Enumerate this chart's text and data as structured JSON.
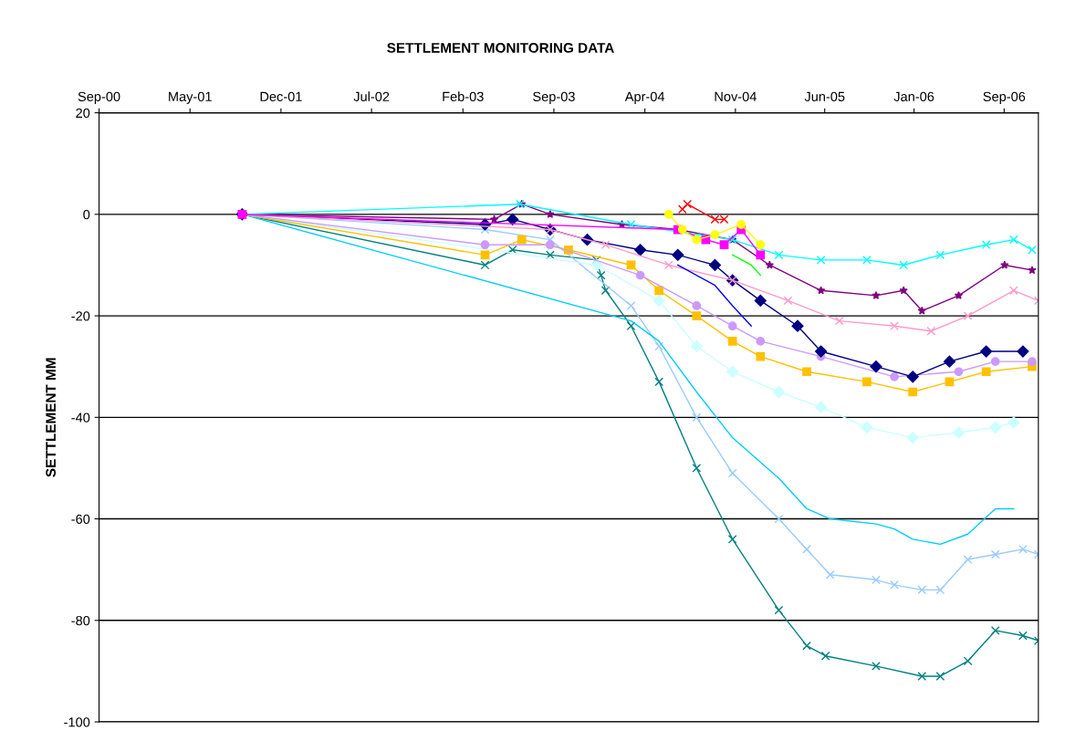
{
  "chart_data": {
    "type": "line",
    "title": "SETTLEMENT MONITORING DATA",
    "ylabel": "SETTLEMENT MM",
    "grid": "y",
    "xlim": [
      "2000-09-25",
      "2006-11-24"
    ],
    "xticks": [
      {
        "value": "2000-09-25",
        "label": "Sep-00"
      },
      {
        "value": "2001-05-01",
        "label": "May-01"
      },
      {
        "value": "2001-12-05",
        "label": "Dec-01"
      },
      {
        "value": "2002-07-10",
        "label": "Jul-02"
      },
      {
        "value": "2003-02-14",
        "label": "Feb-03"
      },
      {
        "value": "2003-09-20",
        "label": "Sep-03"
      },
      {
        "value": "2004-04-25",
        "label": "Apr-04"
      },
      {
        "value": "2004-11-28",
        "label": "Nov-04"
      },
      {
        "value": "2005-06-30",
        "label": "Jun-05"
      },
      {
        "value": "2006-01-30",
        "label": "Jan-06"
      },
      {
        "value": "2006-09-03",
        "label": "Sep-06"
      }
    ],
    "ylim": [
      -100,
      20
    ],
    "yticks": [
      -100,
      -80,
      -60,
      -40,
      -20,
      0,
      20
    ],
    "series": [
      {
        "color": "#008080",
        "marker": "cross",
        "x": [
          "2001-09-03",
          "2003-04-08",
          "2003-06-13",
          "2003-09-11",
          "2003-12-31",
          "2004-01-11",
          "2004-01-22",
          "2004-03-23",
          "2004-05-29",
          "2004-08-27",
          "2004-11-21",
          "2005-03-12",
          "2005-05-18",
          "2005-07-02",
          "2005-10-31",
          "2006-02-18",
          "2006-04-03",
          "2006-06-08",
          "2006-08-13",
          "2006-10-18",
          "2006-11-24"
        ],
        "values": [
          0,
          -10,
          -7,
          -8,
          -9,
          -12,
          -15,
          -22,
          -33,
          -50,
          -64,
          -78,
          -85,
          -87,
          -89,
          -91,
          -91,
          -88,
          -82,
          -83,
          -84
        ]
      },
      {
        "color": "#99ccff",
        "marker": "cross",
        "x": [
          "2001-09-03",
          "2003-04-08",
          "2003-09-11",
          "2004-03-23",
          "2004-05-29",
          "2004-08-27",
          "2004-11-21",
          "2005-03-12",
          "2005-05-18",
          "2005-07-13",
          "2005-10-31",
          "2005-12-14",
          "2006-02-18",
          "2006-04-03",
          "2006-06-08",
          "2006-08-13",
          "2006-10-18",
          "2006-11-24"
        ],
        "values": [
          0,
          -3,
          -5,
          -18,
          -26,
          -40,
          -51,
          -60,
          -66,
          -71,
          -72,
          -73,
          -74,
          -74,
          -68,
          -67,
          -66,
          -67
        ]
      },
      {
        "color": "#00ccff",
        "marker": "none",
        "x": [
          "2001-09-03",
          "2004-03-23",
          "2004-05-29",
          "2004-08-27",
          "2004-11-21",
          "2005-03-12",
          "2005-05-18",
          "2005-07-13",
          "2005-10-31",
          "2005-12-14",
          "2006-01-27",
          "2006-04-03",
          "2006-06-08",
          "2006-08-13",
          "2006-09-26"
        ],
        "values": [
          0,
          -21,
          -25,
          -35,
          -44,
          -52,
          -58,
          -60,
          -61,
          -62,
          -64,
          -65,
          -63,
          -58,
          -58
        ]
      },
      {
        "color": "#ccffff",
        "marker": "diamond",
        "x": [
          "2001-09-03",
          "2004-01-01",
          "2004-05-29",
          "2004-08-27",
          "2004-11-21",
          "2005-03-12",
          "2005-06-21",
          "2005-10-09",
          "2006-01-27",
          "2006-05-17",
          "2006-08-13",
          "2006-09-26"
        ],
        "values": [
          0,
          -10,
          -17,
          -26,
          -31,
          -35,
          -38,
          -42,
          -44,
          -43,
          -42,
          -41
        ]
      },
      {
        "color": "#ffc000",
        "marker": "square",
        "x": [
          "2001-09-03",
          "2003-04-08",
          "2003-07-05",
          "2003-10-25",
          "2004-03-23",
          "2004-05-29",
          "2004-08-27",
          "2004-11-21",
          "2005-01-27",
          "2005-05-18",
          "2005-10-09",
          "2006-01-27",
          "2006-04-25",
          "2006-07-22",
          "2006-11-09"
        ],
        "values": [
          0,
          -8,
          -5,
          -7,
          -10,
          -15,
          -20,
          -25,
          -28,
          -31,
          -33,
          -35,
          -33,
          -31,
          -30
        ]
      },
      {
        "color": "#cc99ff",
        "marker": "circle",
        "x": [
          "2001-09-03",
          "2003-04-08",
          "2003-09-11",
          "2004-04-14",
          "2004-08-27",
          "2004-11-21",
          "2005-01-27",
          "2005-06-21",
          "2005-12-14",
          "2006-05-17",
          "2006-08-13",
          "2006-11-09"
        ],
        "values": [
          0,
          -6,
          -6,
          -12,
          -18,
          -22,
          -25,
          -28,
          -32,
          -31,
          -29,
          -29
        ]
      },
      {
        "color": "#000080",
        "marker": "diamond",
        "x": [
          "2001-09-03",
          "2003-04-08",
          "2003-06-13",
          "2003-09-11",
          "2003-12-09",
          "2004-04-14",
          "2004-07-13",
          "2004-10-10",
          "2004-11-21",
          "2005-01-27",
          "2005-04-26",
          "2005-06-21",
          "2005-10-31",
          "2006-01-27",
          "2006-04-25",
          "2006-07-22",
          "2006-10-18"
        ],
        "values": [
          0,
          -2,
          -1,
          -3,
          -5,
          -7,
          -8,
          -10,
          -13,
          -17,
          -22,
          -27,
          -30,
          -32,
          -29,
          -27,
          -27
        ]
      },
      {
        "color": "#ff99cc",
        "marker": "cross",
        "x": [
          "2001-09-03",
          "2003-09-11",
          "2004-01-22",
          "2004-06-21",
          "2004-11-21",
          "2005-04-03",
          "2005-08-04",
          "2005-12-14",
          "2006-03-12",
          "2006-06-08",
          "2006-09-26",
          "2006-11-24"
        ],
        "values": [
          0,
          -3,
          -6,
          -10,
          -13,
          -17,
          -21,
          -22,
          -23,
          -20,
          -15,
          -17
        ]
      },
      {
        "color": "#800080",
        "marker": "star",
        "x": [
          "2001-09-03",
          "2003-04-30",
          "2003-07-05",
          "2003-09-11",
          "2004-03-01",
          "2004-07-13",
          "2004-11-21",
          "2005-02-18",
          "2005-06-21",
          "2005-10-31",
          "2006-01-05",
          "2006-02-18",
          "2006-05-17",
          "2006-09-04",
          "2006-11-09"
        ],
        "values": [
          0,
          -1,
          2,
          0,
          -2,
          -3,
          -5,
          -10,
          -15,
          -16,
          -15,
          -19,
          -16,
          -10,
          -11
        ]
      },
      {
        "color": "#00ffff",
        "marker": "cross",
        "x": [
          "2001-09-03",
          "2003-07-01",
          "2004-03-23",
          "2004-11-21",
          "2005-03-12",
          "2005-06-21",
          "2005-10-09",
          "2006-01-05",
          "2006-04-03",
          "2006-07-22",
          "2006-09-26",
          "2006-11-09"
        ],
        "values": [
          0,
          2,
          -2,
          -5,
          -8,
          -9,
          -9,
          -10,
          -8,
          -6,
          -5,
          -7
        ]
      },
      {
        "color": "#ff00ff",
        "marker": "square",
        "x": [
          "2001-09-03",
          "2004-07-13",
          "2004-09-18",
          "2004-11-01",
          "2004-12-12",
          "2005-01-27"
        ],
        "values": [
          0,
          -3,
          -5,
          -6,
          -3,
          -8
        ]
      },
      {
        "color": "#ffff00",
        "marker": "circle",
        "x": [
          "2004-06-21",
          "2004-07-24",
          "2004-08-27",
          "2004-10-10",
          "2004-12-12",
          "2005-01-27"
        ],
        "values": [
          0,
          -3,
          -5,
          -4,
          -2,
          -6
        ]
      },
      {
        "color": "#ff0000",
        "marker": "cross",
        "x": [
          "2004-07-24",
          "2004-08-05",
          "2004-10-10",
          "2004-11-01"
        ],
        "values": [
          1,
          2,
          -1,
          -1
        ]
      },
      {
        "color": "#0000ff",
        "marker": "none",
        "x": [
          "2004-07-13",
          "2004-10-10",
          "2004-11-21",
          "2005-01-05"
        ],
        "values": [
          -10,
          -14,
          -18,
          -22
        ]
      },
      {
        "color": "#00ff00",
        "marker": "none",
        "x": [
          "2004-11-21",
          "2005-01-05",
          "2005-01-27"
        ],
        "values": [
          -8,
          -10,
          -12
        ]
      }
    ]
  }
}
